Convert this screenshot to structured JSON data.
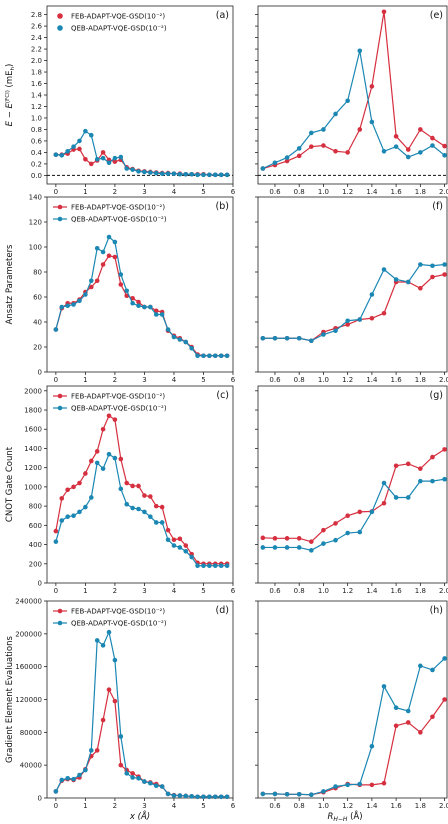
{
  "colors": {
    "feb": "#d62f3f",
    "qeb": "#1b87b3",
    "axis": "#222222"
  },
  "x_labels": {
    "left": "x (Å)",
    "right": "R H−H (Å)"
  },
  "legend": {
    "feb": "FEB-ADAPT-VQE-GSD(10⁻²)",
    "qeb": "QEB-ADAPT-VQE-GSD(10⁻²)"
  },
  "chart_data": [
    {
      "id": "a",
      "panel_label": "(a)",
      "type": "line",
      "ylabel": "E − E^(FCI) (mE_h)",
      "xlim": [
        -0.3,
        6.0
      ],
      "ylim": [
        -0.15,
        2.95
      ],
      "xticks": [
        0,
        1,
        2,
        3,
        4,
        5,
        6
      ],
      "yticks": [
        "0.0",
        "0.2",
        "0.4",
        "0.6",
        "0.8",
        "1.0",
        "1.2",
        "1.4",
        "1.6",
        "1.8",
        "2.0",
        "2.2",
        "2.4",
        "2.6",
        "2.8"
      ],
      "legend_markers": "dot",
      "dashed_zero": true,
      "x": [
        0.0,
        0.2,
        0.4,
        0.6,
        0.8,
        1.0,
        1.2,
        1.4,
        1.6,
        1.8,
        2.0,
        2.2,
        2.4,
        2.6,
        2.8,
        3.0,
        3.2,
        3.4,
        3.6,
        3.8,
        4.0,
        4.2,
        4.4,
        4.6,
        4.8,
        5.0,
        5.2,
        5.4,
        5.6,
        5.8
      ],
      "series": [
        {
          "name": "FEB-ADAPT-VQE-GSD(10⁻²)",
          "key": "feb",
          "values": [
            0.36,
            0.36,
            0.38,
            0.45,
            0.46,
            0.28,
            0.2,
            0.26,
            0.4,
            0.27,
            0.24,
            0.27,
            0.14,
            0.11,
            0.08,
            0.07,
            0.06,
            0.05,
            0.04,
            0.04,
            0.03,
            0.03,
            0.02,
            0.02,
            0.02,
            0.02,
            0.01,
            0.01,
            0.01,
            0.01
          ]
        },
        {
          "name": "QEB-ADAPT-VQE-GSD(10⁻²)",
          "key": "qeb",
          "values": [
            0.36,
            0.35,
            0.42,
            0.5,
            0.6,
            0.77,
            0.7,
            0.28,
            0.3,
            0.22,
            0.3,
            0.32,
            0.12,
            0.1,
            0.07,
            0.06,
            0.05,
            0.04,
            0.03,
            0.03,
            0.03,
            0.02,
            0.02,
            0.02,
            0.01,
            0.01,
            0.01,
            0.01,
            0.01,
            0.01
          ]
        }
      ]
    },
    {
      "id": "e",
      "panel_label": "(e)",
      "type": "line",
      "ylabel": "",
      "xlim": [
        0.46,
        2.02
      ],
      "ylim": [
        -0.15,
        2.95
      ],
      "xticks": [
        "0.6",
        "0.8",
        "1.0",
        "1.2",
        "1.4",
        "1.6",
        "1.8",
        "2.0"
      ],
      "dashed_zero": true,
      "x": [
        0.5,
        0.6,
        0.7,
        0.8,
        0.9,
        1.0,
        1.1,
        1.2,
        1.3,
        1.4,
        1.5,
        1.6,
        1.7,
        1.8,
        1.9,
        2.0
      ],
      "series": [
        {
          "name": "FEB-ADAPT-VQE-GSD(10⁻²)",
          "key": "feb",
          "values": [
            0.12,
            0.18,
            0.25,
            0.34,
            0.5,
            0.52,
            0.42,
            0.4,
            0.8,
            1.55,
            2.85,
            0.68,
            0.45,
            0.8,
            0.65,
            0.51
          ]
        },
        {
          "name": "QEB-ADAPT-VQE-GSD(10⁻²)",
          "key": "qeb",
          "values": [
            0.12,
            0.22,
            0.31,
            0.47,
            0.74,
            0.8,
            1.07,
            1.3,
            2.17,
            0.93,
            0.42,
            0.5,
            0.32,
            0.4,
            0.52,
            0.35
          ]
        }
      ]
    },
    {
      "id": "b",
      "panel_label": "(b)",
      "type": "line",
      "ylabel": "Ansatz Parameters",
      "xlim": [
        -0.3,
        6.0
      ],
      "ylim": [
        0,
        140
      ],
      "xticks": [
        0,
        1,
        2,
        3,
        4,
        5,
        6
      ],
      "yticks": [
        "0",
        "20",
        "40",
        "60",
        "80",
        "100",
        "120",
        "140"
      ],
      "legend_markers": "line",
      "x": [
        0.0,
        0.2,
        0.4,
        0.6,
        0.8,
        1.0,
        1.2,
        1.4,
        1.6,
        1.8,
        2.0,
        2.2,
        2.4,
        2.6,
        2.8,
        3.0,
        3.2,
        3.4,
        3.6,
        3.8,
        4.0,
        4.2,
        4.4,
        4.6,
        4.8,
        5.0,
        5.2,
        5.4,
        5.6,
        5.8
      ],
      "series": [
        {
          "name": "FEB-ADAPT-VQE-GSD(10⁻²)",
          "key": "feb",
          "values": [
            34,
            51,
            55,
            55,
            58,
            64,
            68,
            73,
            86,
            93,
            92,
            70,
            61,
            59,
            56,
            52,
            52,
            49,
            48,
            33,
            29,
            27,
            24,
            20,
            14,
            13,
            13,
            13,
            13,
            13
          ]
        },
        {
          "name": "QEB-ADAPT-VQE-GSD(10⁻²)",
          "key": "qeb",
          "values": [
            34,
            52,
            53,
            54,
            57,
            62,
            73,
            99,
            96,
            108,
            104,
            78,
            65,
            55,
            53,
            52,
            52,
            46,
            46,
            34,
            28,
            26,
            24,
            19,
            13,
            13,
            13,
            13,
            13,
            13
          ]
        }
      ]
    },
    {
      "id": "f",
      "panel_label": "(f)",
      "type": "line",
      "ylabel": "",
      "xlim": [
        0.46,
        2.02
      ],
      "ylim": [
        0,
        140
      ],
      "xticks": [
        "0.6",
        "0.8",
        "1.0",
        "1.2",
        "1.4",
        "1.6",
        "1.8",
        "2.0"
      ],
      "x": [
        0.5,
        0.6,
        0.7,
        0.8,
        0.9,
        1.0,
        1.1,
        1.2,
        1.3,
        1.4,
        1.5,
        1.6,
        1.7,
        1.8,
        1.9,
        2.0
      ],
      "series": [
        {
          "name": "FEB-ADAPT-VQE-GSD(10⁻²)",
          "key": "feb",
          "values": [
            27,
            27,
            27,
            27,
            25,
            32,
            35,
            38,
            42,
            43,
            47,
            72,
            72,
            67,
            76,
            78
          ]
        },
        {
          "name": "QEB-ADAPT-VQE-GSD(10⁻²)",
          "key": "qeb",
          "values": [
            27,
            27,
            27,
            27,
            25,
            30,
            33,
            41,
            42,
            62,
            82,
            74,
            72,
            86,
            85,
            86
          ]
        }
      ]
    },
    {
      "id": "c",
      "panel_label": "(c)",
      "type": "line",
      "ylabel": "CNOT Gate Count",
      "xlim": [
        -0.3,
        6.0
      ],
      "ylim": [
        0,
        2050
      ],
      "xticks": [
        0,
        1,
        2,
        3,
        4,
        5,
        6
      ],
      "yticks": [
        "0",
        "200",
        "400",
        "600",
        "800",
        "1000",
        "1200",
        "1400",
        "1600",
        "1800",
        "2000"
      ],
      "legend_markers": "line",
      "x": [
        0.0,
        0.2,
        0.4,
        0.6,
        0.8,
        1.0,
        1.2,
        1.4,
        1.6,
        1.8,
        2.0,
        2.2,
        2.4,
        2.6,
        2.8,
        3.0,
        3.2,
        3.4,
        3.6,
        3.8,
        4.0,
        4.2,
        4.4,
        4.6,
        4.8,
        5.0,
        5.2,
        5.4,
        5.6,
        5.8
      ],
      "series": [
        {
          "name": "FEB-ADAPT-VQE-GSD(10⁻²)",
          "key": "feb",
          "values": [
            540,
            880,
            970,
            1000,
            1040,
            1140,
            1270,
            1370,
            1600,
            1740,
            1700,
            1290,
            1040,
            1010,
            1010,
            910,
            900,
            800,
            790,
            550,
            450,
            460,
            390,
            300,
            210,
            200,
            200,
            200,
            200,
            200
          ]
        },
        {
          "name": "QEB-ADAPT-VQE-GSD(10⁻²)",
          "key": "qeb",
          "values": [
            430,
            650,
            690,
            700,
            740,
            790,
            890,
            1250,
            1190,
            1340,
            1300,
            980,
            820,
            780,
            770,
            740,
            690,
            630,
            630,
            450,
            390,
            370,
            330,
            270,
            180,
            180,
            180,
            180,
            180,
            180
          ]
        }
      ]
    },
    {
      "id": "g",
      "panel_label": "(g)",
      "type": "line",
      "ylabel": "",
      "xlim": [
        0.46,
        2.02
      ],
      "ylim": [
        0,
        2050
      ],
      "xticks": [
        "0.6",
        "0.8",
        "1.0",
        "1.2",
        "1.4",
        "1.6",
        "1.8",
        "2.0"
      ],
      "x": [
        0.5,
        0.6,
        0.7,
        0.8,
        0.9,
        1.0,
        1.1,
        1.2,
        1.3,
        1.4,
        1.5,
        1.6,
        1.7,
        1.8,
        1.9,
        2.0
      ],
      "series": [
        {
          "name": "FEB-ADAPT-VQE-GSD(10⁻²)",
          "key": "feb",
          "values": [
            470,
            465,
            465,
            465,
            430,
            550,
            620,
            700,
            740,
            745,
            830,
            1220,
            1240,
            1190,
            1310,
            1390
          ]
        },
        {
          "name": "QEB-ADAPT-VQE-GSD(10⁻²)",
          "key": "qeb",
          "values": [
            370,
            370,
            370,
            370,
            340,
            410,
            445,
            520,
            530,
            740,
            1040,
            890,
            890,
            1060,
            1060,
            1080
          ]
        }
      ]
    },
    {
      "id": "d",
      "panel_label": "(d)",
      "type": "line",
      "ylabel": "Gradient Element Evaluations",
      "xlim": [
        -0.3,
        6.0
      ],
      "ylim": [
        0,
        240000
      ],
      "xticks": [
        0,
        1,
        2,
        3,
        4,
        5,
        6
      ],
      "yticks": [
        "0",
        "40000",
        "80000",
        "120000",
        "160000",
        "200000",
        "240000"
      ],
      "legend_markers": "line",
      "x": [
        0.0,
        0.2,
        0.4,
        0.6,
        0.8,
        1.0,
        1.2,
        1.4,
        1.6,
        1.8,
        2.0,
        2.2,
        2.4,
        2.6,
        2.8,
        3.0,
        3.2,
        3.4,
        3.6,
        3.8,
        4.0,
        4.2,
        4.4,
        4.6,
        4.8,
        5.0,
        5.2,
        5.4,
        5.6,
        5.8
      ],
      "series": [
        {
          "name": "FEB-ADAPT-VQE-GSD(10⁻²)",
          "key": "feb",
          "values": [
            8000,
            21000,
            23000,
            22000,
            25000,
            35000,
            51000,
            58000,
            95000,
            132000,
            118000,
            40000,
            34000,
            30000,
            26000,
            20000,
            19000,
            17000,
            14000,
            5000,
            3500,
            3000,
            2500,
            2000,
            1500,
            1500,
            1500,
            1500,
            1500,
            1500
          ]
        },
        {
          "name": "QEB-ADAPT-VQE-GSD(10⁻²)",
          "key": "qeb",
          "values": [
            8000,
            22000,
            24000,
            23000,
            28000,
            34000,
            58000,
            192000,
            186000,
            202000,
            168000,
            75000,
            30000,
            25000,
            24000,
            20000,
            18000,
            15000,
            14000,
            5000,
            3000,
            3000,
            2500,
            2000,
            1500,
            1500,
            1500,
            1500,
            1500,
            1500
          ]
        }
      ]
    },
    {
      "id": "h",
      "panel_label": "(h)",
      "type": "line",
      "ylabel": "",
      "xlim": [
        0.46,
        2.02
      ],
      "ylim": [
        0,
        240000
      ],
      "xticks": [
        "0.6",
        "0.8",
        "1.0",
        "1.2",
        "1.4",
        "1.6",
        "1.8",
        "2.0"
      ],
      "x": [
        0.5,
        0.6,
        0.7,
        0.8,
        0.9,
        1.0,
        1.1,
        1.2,
        1.3,
        1.4,
        1.5,
        1.6,
        1.7,
        1.8,
        1.9,
        2.0
      ],
      "series": [
        {
          "name": "FEB-ADAPT-VQE-GSD(10⁻²)",
          "key": "feb",
          "values": [
            5000,
            5000,
            4500,
            4500,
            4000,
            7000,
            12000,
            17000,
            16000,
            16000,
            18000,
            88000,
            92000,
            80000,
            99000,
            120000
          ]
        },
        {
          "name": "QEB-ADAPT-VQE-GSD(10⁻²)",
          "key": "qeb",
          "values": [
            5000,
            5000,
            4500,
            4500,
            4000,
            8000,
            14000,
            16000,
            17000,
            63000,
            136000,
            110000,
            106000,
            161000,
            156000,
            170000
          ]
        }
      ]
    }
  ]
}
